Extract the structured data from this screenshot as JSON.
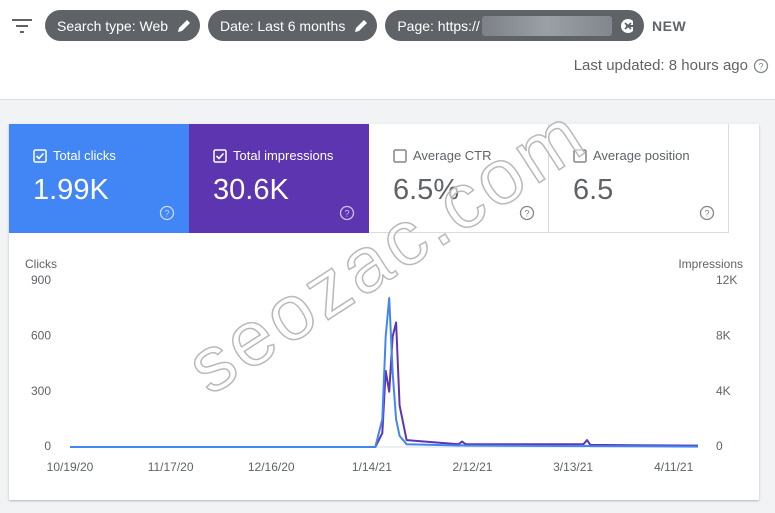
{
  "toolbar": {
    "filters": [
      {
        "label": "Search type: Web",
        "icon": "edit"
      },
      {
        "label": "Date: Last 6 months",
        "icon": "edit"
      },
      {
        "label": "Page: https://",
        "icon": "clear"
      }
    ],
    "new_button": "NEW",
    "last_updated": "Last updated: 8 hours ago"
  },
  "metrics": [
    {
      "label": "Total clicks",
      "value": "1.99K",
      "checked": true,
      "color": "#4285f4"
    },
    {
      "label": "Total impressions",
      "value": "30.6K",
      "checked": true,
      "color": "#5e35b1"
    },
    {
      "label": "Average CTR",
      "value": "6.5%",
      "checked": false,
      "color": "#ffffff"
    },
    {
      "label": "Average position",
      "value": "6.5",
      "checked": false,
      "color": "#ffffff"
    }
  ],
  "chart_data": {
    "type": "line",
    "x": [
      "10/19/20",
      "1/15/21",
      "1/17/21",
      "1/18/21",
      "1/19/21",
      "1/20/21",
      "1/21/21",
      "1/22/21",
      "1/24/21",
      "2/8/21",
      "2/9/21",
      "2/10/21",
      "3/16/21",
      "3/17/21",
      "3/18/21",
      "4/18/21"
    ],
    "xticks": [
      "10/19/20",
      "11/17/20",
      "12/16/20",
      "1/14/21",
      "2/12/21",
      "3/13/21",
      "4/11/21"
    ],
    "series": [
      {
        "name": "Clicks",
        "color": "#4285f4",
        "values": [
          0,
          0,
          150,
          600,
          808,
          400,
          150,
          60,
          15,
          8,
          10,
          8,
          5,
          6,
          5,
          2
        ]
      },
      {
        "name": "Impressions",
        "color": "#5e35b1",
        "axis": "y2",
        "values": [
          0,
          0,
          1000,
          5500,
          4000,
          8000,
          9000,
          3000,
          500,
          200,
          400,
          200,
          200,
          500,
          150,
          100
        ]
      }
    ],
    "ylim": [
      0,
      900
    ],
    "yticks": [
      0,
      300,
      600,
      900
    ],
    "y2lim": [
      0,
      12000
    ],
    "y2ticks": [
      0,
      {
        "value": 4000,
        "label": "4K"
      },
      {
        "value": 8000,
        "label": "8K"
      },
      {
        "value": 12000,
        "label": "12K"
      }
    ]
  },
  "watermark": "seozac.com"
}
